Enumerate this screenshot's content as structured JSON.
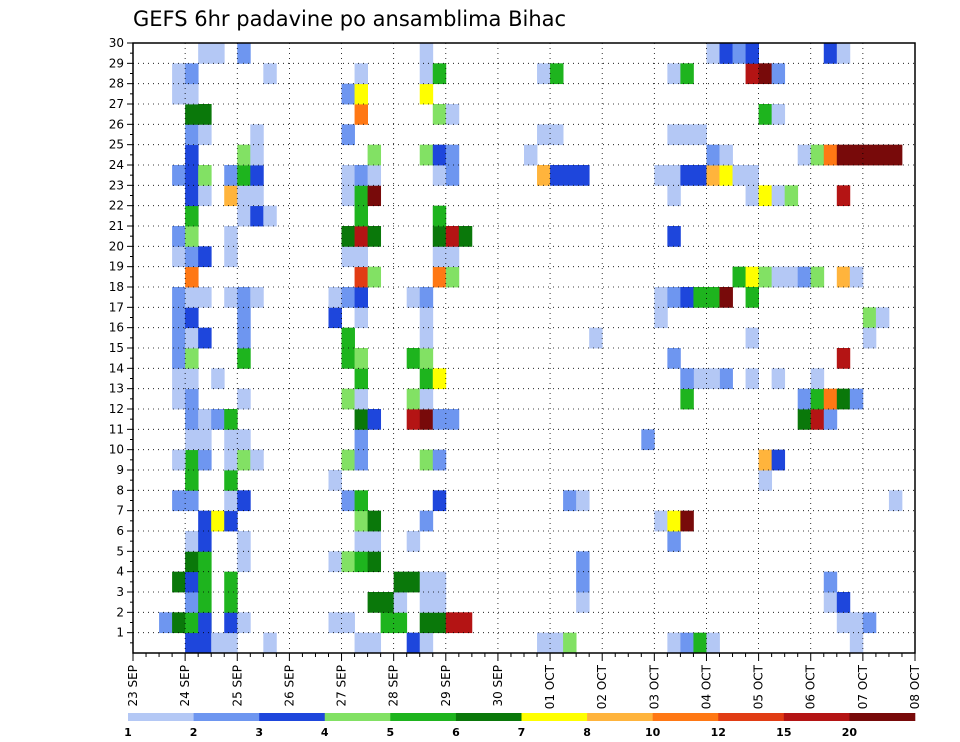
{
  "chart_data": {
    "type": "heatmap",
    "title": "GEFS 6hr padavine po ansamblima Bihac",
    "xlabel": "",
    "ylabel": "",
    "x_tick_labels": [
      "23 SEP",
      "24 SEP",
      "25 SEP",
      "26 SEP",
      "27 SEP",
      "28 SEP",
      "29 SEP",
      "30 SEP",
      "01 OCT",
      "02 OCT",
      "03 OCT",
      "04 OCT",
      "05 OCT",
      "06 OCT",
      "07 OCT",
      "08 OCT"
    ],
    "y_tick_labels": [
      "1",
      "2",
      "3",
      "4",
      "5",
      "6",
      "7",
      "8",
      "9",
      "10",
      "11",
      "12",
      "13",
      "14",
      "15",
      "16",
      "17",
      "18",
      "19",
      "20",
      "21",
      "22",
      "23",
      "24",
      "25",
      "26",
      "27",
      "28",
      "29",
      "30"
    ],
    "xlim": [
      "23 SEP",
      "08 OCT"
    ],
    "ylim": [
      0,
      30
    ],
    "grid": true,
    "legend_position": "bottom",
    "legend_levels": [
      "1",
      "2",
      "3",
      "4",
      "5",
      "6",
      "7",
      "8",
      "10",
      "12",
      "15",
      "20"
    ],
    "colors": [
      "#b4c8f5",
      "#6e96f0",
      "#1e46dc",
      "#82e164",
      "#1eb41e",
      "#0a780a",
      "#ffff00",
      "#ffb43c",
      "#ff7814",
      "#e13c14",
      "#b41414",
      "#780a0a"
    ],
    "time_step_hours": 6,
    "cells": [
      [
        2,
        4,
        3
      ],
      [
        2,
        5,
        4
      ],
      [
        1,
        4,
        3
      ],
      [
        1,
        5,
        3
      ],
      [
        1,
        6,
        1
      ],
      [
        2,
        2,
        2
      ],
      [
        2,
        3,
        6
      ],
      [
        2,
        4,
        5
      ],
      [
        2,
        5,
        3
      ],
      [
        3,
        4,
        2
      ],
      [
        3,
        5,
        5
      ],
      [
        4,
        3,
        6
      ],
      [
        4,
        4,
        3
      ],
      [
        4,
        5,
        5
      ],
      [
        5,
        4,
        6
      ],
      [
        5,
        5,
        5
      ],
      [
        6,
        4,
        1
      ],
      [
        6,
        5,
        3
      ],
      [
        7,
        5,
        3
      ],
      [
        7,
        6,
        7
      ],
      [
        8,
        3,
        2
      ],
      [
        8,
        4,
        2
      ],
      [
        9,
        4,
        5
      ],
      [
        10,
        4,
        5
      ],
      [
        10,
        3,
        1
      ],
      [
        10,
        5,
        2
      ],
      [
        11,
        4,
        1
      ],
      [
        11,
        5,
        1
      ],
      [
        12,
        4,
        2
      ],
      [
        12,
        5,
        1
      ],
      [
        13,
        3,
        1
      ],
      [
        13,
        4,
        2
      ],
      [
        14,
        3,
        1
      ],
      [
        14,
        4,
        1
      ],
      [
        15,
        3,
        2
      ],
      [
        15,
        4,
        4
      ],
      [
        16,
        3,
        2
      ],
      [
        16,
        4,
        1
      ],
      [
        16,
        5,
        3
      ],
      [
        17,
        3,
        2
      ],
      [
        17,
        4,
        3
      ],
      [
        18,
        3,
        2
      ],
      [
        18,
        4,
        1
      ],
      [
        18,
        5,
        1
      ],
      [
        19,
        4,
        9
      ],
      [
        20,
        3,
        1
      ],
      [
        20,
        4,
        2
      ],
      [
        20,
        5,
        3
      ],
      [
        21,
        3,
        2
      ],
      [
        21,
        4,
        4
      ],
      [
        22,
        4,
        5
      ],
      [
        23,
        4,
        3
      ],
      [
        23,
        5,
        1
      ],
      [
        24,
        3,
        2
      ],
      [
        24,
        4,
        3
      ],
      [
        24,
        5,
        4
      ],
      [
        25,
        4,
        3
      ],
      [
        26,
        4,
        2
      ],
      [
        26,
        5,
        1
      ],
      [
        27,
        4,
        6
      ],
      [
        27,
        5,
        6
      ],
      [
        28,
        3,
        1
      ],
      [
        28,
        4,
        1
      ],
      [
        29,
        3,
        1
      ],
      [
        29,
        4,
        2
      ],
      [
        30,
        5,
        1
      ],
      [
        30,
        6,
        1
      ],
      [
        1,
        7,
        1
      ],
      [
        1,
        10,
        1
      ],
      [
        2,
        7,
        3
      ],
      [
        2,
        8,
        1
      ],
      [
        3,
        7,
        5
      ],
      [
        4,
        7,
        5
      ],
      [
        5,
        8,
        1
      ],
      [
        6,
        8,
        1
      ],
      [
        7,
        7,
        3
      ],
      [
        8,
        7,
        1
      ],
      [
        8,
        8,
        3
      ],
      [
        9,
        7,
        5
      ],
      [
        10,
        7,
        1
      ],
      [
        10,
        8,
        4
      ],
      [
        10,
        9,
        1
      ],
      [
        11,
        7,
        1
      ],
      [
        11,
        8,
        1
      ],
      [
        12,
        6,
        2
      ],
      [
        12,
        7,
        5
      ],
      [
        13,
        8,
        1
      ],
      [
        14,
        6,
        1
      ],
      [
        15,
        8,
        5
      ],
      [
        16,
        8,
        2
      ],
      [
        17,
        8,
        2
      ],
      [
        18,
        7,
        1
      ],
      [
        18,
        8,
        2
      ],
      [
        18,
        9,
        1
      ],
      [
        20,
        7,
        1
      ],
      [
        21,
        7,
        1
      ],
      [
        22,
        8,
        1
      ],
      [
        22,
        9,
        3
      ],
      [
        22,
        10,
        1
      ],
      [
        23,
        7,
        8
      ],
      [
        23,
        8,
        1
      ],
      [
        23,
        9,
        1
      ],
      [
        24,
        7,
        2
      ],
      [
        24,
        8,
        5
      ],
      [
        24,
        9,
        3
      ],
      [
        25,
        8,
        4
      ],
      [
        25,
        9,
        1
      ],
      [
        26,
        9,
        1
      ],
      [
        29,
        10,
        1
      ],
      [
        30,
        8,
        2
      ],
      [
        1,
        17,
        1
      ],
      [
        1,
        18,
        1
      ],
      [
        2,
        15,
        1
      ],
      [
        2,
        16,
        1
      ],
      [
        2,
        19,
        5
      ],
      [
        2,
        20,
        5
      ],
      [
        3,
        18,
        6
      ],
      [
        3,
        19,
        6
      ],
      [
        3,
        20,
        1
      ],
      [
        4,
        20,
        6
      ],
      [
        4,
        21,
        6
      ],
      [
        5,
        15,
        1
      ],
      [
        5,
        16,
        4
      ],
      [
        5,
        17,
        5
      ],
      [
        5,
        18,
        6
      ],
      [
        6,
        17,
        1
      ],
      [
        6,
        18,
        1
      ],
      [
        7,
        17,
        4
      ],
      [
        7,
        18,
        6
      ],
      [
        8,
        16,
        2
      ],
      [
        8,
        17,
        5
      ],
      [
        9,
        15,
        1
      ],
      [
        10,
        16,
        4
      ],
      [
        10,
        17,
        2
      ],
      [
        11,
        17,
        2
      ],
      [
        12,
        17,
        6
      ],
      [
        12,
        18,
        3
      ],
      [
        13,
        16,
        4
      ],
      [
        13,
        17,
        1
      ],
      [
        14,
        17,
        5
      ],
      [
        15,
        16,
        5
      ],
      [
        15,
        17,
        4
      ],
      [
        16,
        16,
        5
      ],
      [
        17,
        15,
        3
      ],
      [
        17,
        17,
        1
      ],
      [
        18,
        15,
        1
      ],
      [
        18,
        16,
        2
      ],
      [
        18,
        17,
        3
      ],
      [
        19,
        17,
        10
      ],
      [
        19,
        18,
        4
      ],
      [
        20,
        16,
        1
      ],
      [
        20,
        17,
        1
      ],
      [
        21,
        16,
        6
      ],
      [
        21,
        17,
        11
      ],
      [
        21,
        18,
        6
      ],
      [
        22,
        17,
        5
      ],
      [
        23,
        16,
        1
      ],
      [
        23,
        17,
        5
      ],
      [
        23,
        18,
        12
      ],
      [
        24,
        16,
        1
      ],
      [
        24,
        17,
        2
      ],
      [
        24,
        18,
        1
      ],
      [
        25,
        18,
        4
      ],
      [
        26,
        16,
        2
      ],
      [
        27,
        17,
        9
      ],
      [
        28,
        16,
        2
      ],
      [
        28,
        17,
        7
      ],
      [
        29,
        17,
        1
      ],
      [
        1,
        21,
        3
      ],
      [
        1,
        22,
        1
      ],
      [
        2,
        22,
        6
      ],
      [
        2,
        23,
        6
      ],
      [
        2,
        24,
        11
      ],
      [
        2,
        25,
        11
      ],
      [
        3,
        22,
        1
      ],
      [
        3,
        23,
        1
      ],
      [
        4,
        22,
        1
      ],
      [
        4,
        23,
        1
      ],
      [
        6,
        21,
        1
      ],
      [
        7,
        22,
        2
      ],
      [
        8,
        23,
        3
      ],
      [
        10,
        22,
        4
      ],
      [
        10,
        23,
        2
      ],
      [
        12,
        21,
        11
      ],
      [
        12,
        22,
        12
      ],
      [
        12,
        23,
        2
      ],
      [
        12,
        24,
        2
      ],
      [
        13,
        21,
        4
      ],
      [
        13,
        22,
        1
      ],
      [
        14,
        22,
        5
      ],
      [
        14,
        23,
        7
      ],
      [
        15,
        21,
        5
      ],
      [
        15,
        22,
        4
      ],
      [
        16,
        22,
        1
      ],
      [
        17,
        22,
        1
      ],
      [
        18,
        21,
        1
      ],
      [
        18,
        22,
        2
      ],
      [
        19,
        23,
        9
      ],
      [
        19,
        24,
        4
      ],
      [
        20,
        23,
        1
      ],
      [
        20,
        24,
        1
      ],
      [
        21,
        23,
        6
      ],
      [
        21,
        24,
        11
      ],
      [
        21,
        25,
        6
      ],
      [
        22,
        23,
        5
      ],
      [
        24,
        23,
        1
      ],
      [
        24,
        24,
        2
      ],
      [
        25,
        22,
        4
      ],
      [
        25,
        23,
        3
      ],
      [
        25,
        24,
        2
      ],
      [
        27,
        23,
        4
      ],
      [
        27,
        24,
        1
      ],
      [
        28,
        22,
        7
      ],
      [
        29,
        22,
        1
      ],
      [
        29,
        23,
        5
      ],
      [
        30,
        22,
        1
      ],
      [
        1,
        31,
        1
      ],
      [
        1,
        32,
        1
      ],
      [
        1,
        33,
        4
      ],
      [
        3,
        34,
        1
      ],
      [
        4,
        34,
        2
      ],
      [
        5,
        34,
        2
      ],
      [
        8,
        33,
        2
      ],
      [
        8,
        34,
        1
      ],
      [
        16,
        35,
        1
      ],
      [
        24,
        31,
        8
      ],
      [
        24,
        32,
        3
      ],
      [
        24,
        33,
        3
      ],
      [
        24,
        34,
        3
      ],
      [
        25,
        30,
        1
      ],
      [
        26,
        31,
        1
      ],
      [
        26,
        32,
        1
      ],
      [
        29,
        31,
        1
      ],
      [
        29,
        32,
        5
      ],
      [
        1,
        41,
        1
      ],
      [
        1,
        42,
        2
      ],
      [
        1,
        43,
        5
      ],
      [
        1,
        44,
        1
      ],
      [
        6,
        41,
        2
      ],
      [
        7,
        40,
        1
      ],
      [
        7,
        41,
        7
      ],
      [
        7,
        42,
        12
      ],
      [
        11,
        39,
        2
      ],
      [
        14,
        42,
        2
      ],
      [
        14,
        43,
        1
      ],
      [
        15,
        41,
        2
      ],
      [
        17,
        40,
        1
      ],
      [
        18,
        40,
        1
      ],
      [
        18,
        41,
        2
      ],
      [
        18,
        42,
        3
      ],
      [
        18,
        43,
        5
      ],
      [
        18,
        44,
        5
      ],
      [
        18,
        45,
        12
      ],
      [
        24,
        40,
        1
      ],
      [
        24,
        41,
        1
      ],
      [
        24,
        42,
        3
      ],
      [
        24,
        43,
        3
      ],
      [
        24,
        44,
        8
      ],
      [
        24,
        45,
        7
      ],
      [
        24,
        46,
        1
      ],
      [
        24,
        47,
        1
      ],
      [
        25,
        44,
        2
      ],
      [
        26,
        41,
        1
      ],
      [
        26,
        42,
        1
      ],
      [
        26,
        43,
        1
      ],
      [
        21,
        41,
        3
      ],
      [
        14,
        45,
        2
      ],
      [
        13,
        42,
        5
      ],
      [
        14,
        42,
        2
      ],
      [
        23,
        41,
        1
      ],
      [
        29,
        41,
        1
      ],
      [
        29,
        42,
        5
      ],
      [
        30,
        45,
        3
      ],
      [
        25,
        45,
        1
      ],
      [
        30,
        44,
        1
      ],
      [
        14,
        44,
        1
      ],
      [
        19,
        46,
        5
      ],
      [
        19,
        47,
        7
      ],
      [
        19,
        48,
        4
      ],
      [
        2,
        54,
        1
      ],
      [
        2,
        55,
        1
      ],
      [
        3,
        53,
        1
      ],
      [
        9,
        48,
        1
      ],
      [
        10,
        48,
        8
      ],
      [
        10,
        49,
        3
      ],
      [
        12,
        51,
        6
      ],
      [
        12,
        52,
        11
      ],
      [
        12,
        53,
        2
      ],
      [
        13,
        51,
        2
      ],
      [
        13,
        52,
        5
      ],
      [
        13,
        53,
        9
      ],
      [
        13,
        54,
        6
      ],
      [
        13,
        55,
        2
      ],
      [
        14,
        47,
        1
      ],
      [
        14,
        52,
        1
      ],
      [
        15,
        54,
        11
      ],
      [
        16,
        47,
        1
      ],
      [
        17,
        56,
        4
      ],
      [
        17,
        57,
        1
      ],
      [
        18,
        47,
        5
      ],
      [
        19,
        49,
        1
      ],
      [
        19,
        50,
        1
      ],
      [
        19,
        51,
        2
      ],
      [
        19,
        52,
        4
      ],
      [
        19,
        54,
        8
      ],
      [
        23,
        47,
        1
      ],
      [
        23,
        48,
        7
      ],
      [
        23,
        49,
        1
      ],
      [
        23,
        50,
        4
      ],
      [
        23,
        54,
        11
      ],
      [
        25,
        51,
        1
      ],
      [
        25,
        52,
        4
      ],
      [
        25,
        53,
        9
      ],
      [
        25,
        54,
        12
      ],
      [
        25,
        55,
        12
      ],
      [
        25,
        56,
        12
      ],
      [
        25,
        57,
        12
      ],
      [
        25,
        58,
        12
      ],
      [
        27,
        48,
        5
      ],
      [
        27,
        49,
        1
      ],
      [
        29,
        47,
        11
      ],
      [
        29,
        48,
        12
      ],
      [
        29,
        49,
        2
      ],
      [
        30,
        45,
        3
      ],
      [
        30,
        46,
        2
      ],
      [
        30,
        47,
        3
      ],
      [
        30,
        53,
        3
      ],
      [
        30,
        54,
        1
      ],
      [
        1,
        55,
        1
      ],
      [
        2,
        56,
        2
      ],
      [
        3,
        54,
        3
      ],
      [
        4,
        53,
        2
      ],
      [
        8,
        58,
        1
      ],
      [
        14,
        49,
        1
      ],
      [
        16,
        56,
        1
      ],
      [
        19,
        55,
        1
      ]
    ]
  }
}
